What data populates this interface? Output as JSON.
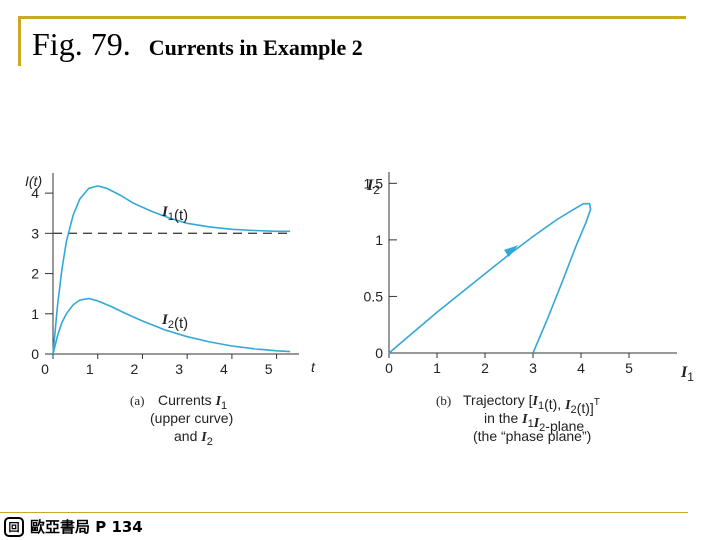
{
  "slide": {
    "fig_label": "Fig. 79.",
    "title": "Currents in Example 2",
    "footer": "歐亞書局 P 134",
    "logo_glyph": "回"
  },
  "colors": {
    "curve": "#33a8d8",
    "text": "#222222",
    "accent": "#c8a826"
  },
  "chart_data": [
    {
      "type": "line",
      "panel": "a",
      "ylabel": "I(t)",
      "xlabel": "t",
      "xlim": [
        0,
        5.5
      ],
      "ylim": [
        0,
        4.5
      ],
      "xticks": [
        "0",
        "1",
        "2",
        "3",
        "4",
        "5"
      ],
      "yticks": [
        "0",
        "1",
        "2",
        "3",
        "4"
      ],
      "series": [
        {
          "name": "I1(t)",
          "x": [
            0,
            0.1,
            0.2,
            0.3,
            0.45,
            0.6,
            0.8,
            1.0,
            1.2,
            1.5,
            1.8,
            2.2,
            2.6,
            3.0,
            3.5,
            4.0,
            4.5,
            5.0,
            5.3
          ],
          "y": [
            0,
            1.2,
            2.1,
            2.8,
            3.45,
            3.85,
            4.12,
            4.18,
            4.12,
            3.95,
            3.75,
            3.55,
            3.38,
            3.25,
            3.16,
            3.1,
            3.07,
            3.05,
            3.05
          ]
        },
        {
          "name": "I2(t)",
          "x": [
            0,
            0.1,
            0.2,
            0.3,
            0.45,
            0.6,
            0.8,
            1.0,
            1.3,
            1.6,
            2.0,
            2.5,
            3.0,
            3.5,
            4.0,
            4.5,
            5.0,
            5.3
          ],
          "y": [
            0,
            0.45,
            0.78,
            1.0,
            1.22,
            1.34,
            1.38,
            1.32,
            1.18,
            1.02,
            0.82,
            0.6,
            0.43,
            0.3,
            0.2,
            0.13,
            0.08,
            0.06
          ]
        }
      ],
      "reference_line": {
        "y": 3,
        "style": "dashed"
      },
      "caption": {
        "letter": "(a)",
        "lines": [
          "Currents I1",
          "(upper curve)",
          "and I2"
        ]
      }
    },
    {
      "type": "line",
      "panel": "b",
      "xlabel": "I1",
      "ylabel": "I2",
      "xlim": [
        0,
        6
      ],
      "ylim": [
        0,
        1.6
      ],
      "xticks": [
        "0",
        "1",
        "2",
        "3",
        "4",
        "5"
      ],
      "yticks": [
        "0",
        "0.5",
        "1",
        "1.5"
      ],
      "series": [
        {
          "name": "trajectory",
          "x": [
            3.0,
            3.3,
            3.6,
            3.9,
            4.1,
            4.2,
            4.18,
            4.05,
            3.85,
            3.5,
            3.0,
            2.5,
            2.0,
            1.5,
            1.0,
            0.5,
            0
          ],
          "y": [
            0.0,
            0.3,
            0.62,
            0.95,
            1.15,
            1.27,
            1.32,
            1.32,
            1.27,
            1.18,
            1.03,
            0.87,
            0.7,
            0.53,
            0.36,
            0.18,
            0
          ]
        }
      ],
      "arrow_at": [
        2.6,
        0.9
      ],
      "caption": {
        "letter": "(b)",
        "lines": [
          "Trajectory [I1(t), I2(t)]T",
          "in the I1I2-plane",
          "(the “phase plane”)"
        ]
      }
    }
  ]
}
